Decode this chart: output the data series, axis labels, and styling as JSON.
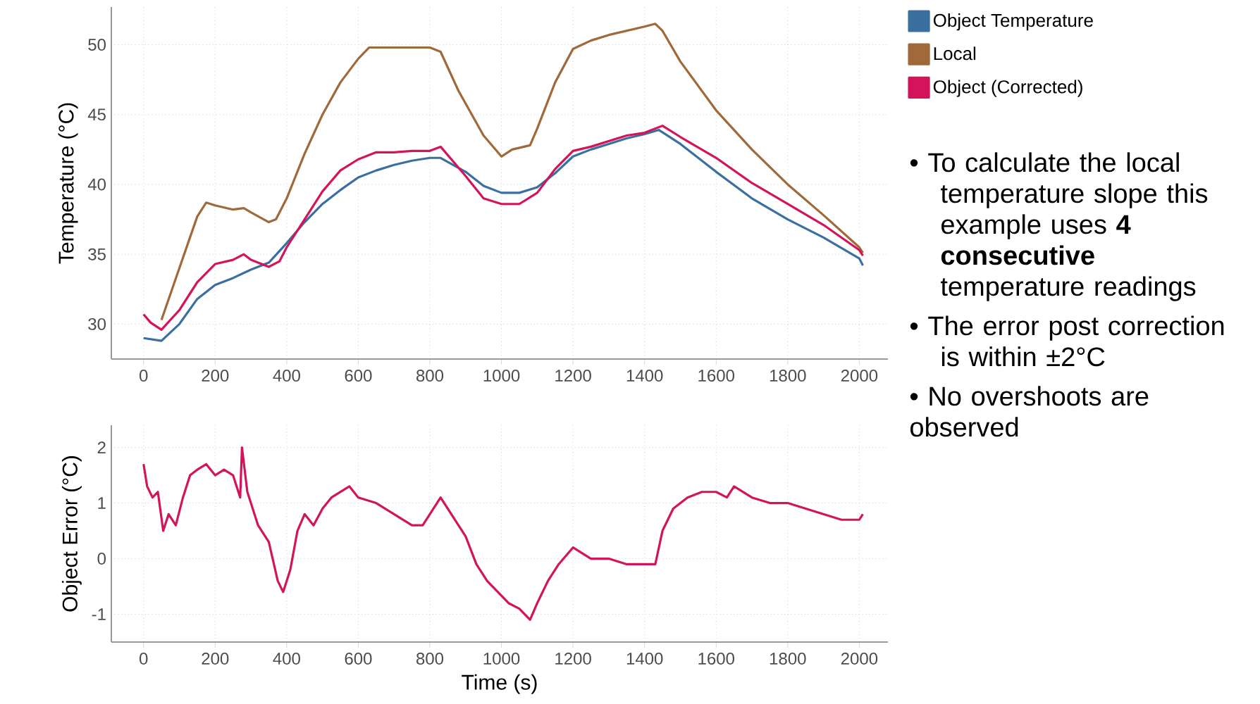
{
  "chart_data": [
    {
      "type": "line",
      "ylabel": "Temperature (°C)",
      "xlim": [
        -90,
        2080
      ],
      "ylim": [
        27.5,
        52.7
      ],
      "xticks": [
        0,
        200,
        400,
        600,
        800,
        1000,
        1200,
        1400,
        1600,
        1800,
        2000
      ],
      "yticks": [
        30,
        35,
        40,
        45,
        50
      ],
      "grid": true,
      "legend": "top right",
      "marker": "none",
      "line_style": "solid",
      "series": [
        {
          "name": "Object Temperature",
          "color": "#3a6fa0",
          "x": [
            0,
            50,
            100,
            150,
            200,
            250,
            300,
            350,
            400,
            450,
            500,
            550,
            600,
            650,
            700,
            750,
            800,
            830,
            900,
            950,
            1000,
            1050,
            1100,
            1150,
            1200,
            1250,
            1300,
            1350,
            1400,
            1440,
            1500,
            1600,
            1700,
            1800,
            1900,
            2000,
            2010
          ],
          "values": [
            29.0,
            28.8,
            30.0,
            31.8,
            32.8,
            33.3,
            33.9,
            34.4,
            35.8,
            37.3,
            38.6,
            39.6,
            40.5,
            41.0,
            41.4,
            41.7,
            41.9,
            41.9,
            40.9,
            39.9,
            39.4,
            39.4,
            39.8,
            40.8,
            42.0,
            42.5,
            42.9,
            43.3,
            43.6,
            43.9,
            42.9,
            40.9,
            39.0,
            37.5,
            36.2,
            34.7,
            34.2
          ]
        },
        {
          "name": "Local",
          "color": "#a0693a",
          "x": [
            50,
            100,
            150,
            175,
            200,
            250,
            280,
            300,
            350,
            370,
            400,
            450,
            500,
            550,
            600,
            630,
            700,
            800,
            830,
            880,
            950,
            1000,
            1030,
            1080,
            1100,
            1150,
            1200,
            1250,
            1300,
            1400,
            1430,
            1450,
            1500,
            1600,
            1700,
            1800,
            1900,
            2000,
            2010
          ],
          "values": [
            30.3,
            34.0,
            37.7,
            38.7,
            38.5,
            38.2,
            38.3,
            38.0,
            37.3,
            37.5,
            39.0,
            42.2,
            45.0,
            47.3,
            49.0,
            49.8,
            49.8,
            49.8,
            49.5,
            46.7,
            43.5,
            42.0,
            42.5,
            42.8,
            44.0,
            47.3,
            49.7,
            50.3,
            50.7,
            51.3,
            51.5,
            51.0,
            48.8,
            45.3,
            42.5,
            40.0,
            37.8,
            35.5,
            35.1
          ]
        },
        {
          "name": "Object (Corrected)",
          "color": "#d4145a",
          "x": [
            0,
            20,
            50,
            100,
            150,
            200,
            250,
            280,
            300,
            350,
            380,
            400,
            450,
            500,
            550,
            600,
            650,
            700,
            750,
            800,
            830,
            900,
            950,
            1000,
            1050,
            1100,
            1150,
            1200,
            1250,
            1300,
            1350,
            1400,
            1450,
            1500,
            1600,
            1700,
            1800,
            1900,
            2000,
            2010
          ],
          "values": [
            30.7,
            30.1,
            29.6,
            31.0,
            33.0,
            34.3,
            34.6,
            35.0,
            34.6,
            34.1,
            34.5,
            35.5,
            37.5,
            39.5,
            41.0,
            41.8,
            42.3,
            42.3,
            42.4,
            42.4,
            42.7,
            40.6,
            39.0,
            38.6,
            38.6,
            39.4,
            41.1,
            42.4,
            42.7,
            43.1,
            43.5,
            43.7,
            44.2,
            43.4,
            41.9,
            40.1,
            38.6,
            37.1,
            35.3,
            34.9
          ]
        }
      ]
    },
    {
      "type": "line",
      "xlabel": "Time (s)",
      "ylabel": "Object Error (°C)",
      "xlim": [
        -90,
        2080
      ],
      "ylim": [
        -1.5,
        2.4
      ],
      "xticks": [
        0,
        200,
        400,
        600,
        800,
        1000,
        1200,
        1400,
        1600,
        1800,
        2000
      ],
      "yticks": [
        2,
        1,
        0,
        -1
      ],
      "grid": true,
      "marker": "none",
      "line_style": "solid",
      "color": "#d4145a",
      "x": [
        0,
        10,
        25,
        40,
        55,
        70,
        90,
        110,
        130,
        150,
        175,
        200,
        225,
        250,
        270,
        275,
        290,
        320,
        350,
        375,
        390,
        410,
        430,
        450,
        475,
        500,
        525,
        550,
        575,
        600,
        650,
        700,
        750,
        780,
        800,
        830,
        860,
        900,
        930,
        960,
        990,
        1020,
        1050,
        1080,
        1100,
        1130,
        1160,
        1200,
        1250,
        1300,
        1350,
        1400,
        1430,
        1450,
        1480,
        1520,
        1560,
        1600,
        1630,
        1650,
        1700,
        1750,
        1800,
        1850,
        1900,
        1950,
        2000,
        2010
      ],
      "values": [
        1.7,
        1.3,
        1.1,
        1.2,
        0.5,
        0.8,
        0.6,
        1.1,
        1.5,
        1.6,
        1.7,
        1.5,
        1.6,
        1.5,
        1.1,
        2.0,
        1.2,
        0.6,
        0.3,
        -0.4,
        -0.6,
        -0.2,
        0.5,
        0.8,
        0.6,
        0.9,
        1.1,
        1.2,
        1.3,
        1.1,
        1.0,
        0.8,
        0.6,
        0.6,
        0.8,
        1.1,
        0.8,
        0.4,
        -0.1,
        -0.4,
        -0.6,
        -0.8,
        -0.9,
        -1.1,
        -0.8,
        -0.4,
        -0.1,
        0.2,
        0.0,
        0.0,
        -0.1,
        -0.1,
        -0.1,
        0.5,
        0.9,
        1.1,
        1.2,
        1.2,
        1.1,
        1.3,
        1.1,
        1.0,
        1.0,
        0.9,
        0.8,
        0.7,
        0.7,
        0.8
      ]
    },
    {
      "type": "other",
      "annotations": [
        "• To calculate the local temperature slope this example uses **4 consecutive** temperature readings",
        "• The error post correction is within ±2°C",
        "• No overshoots are observed"
      ]
    }
  ]
}
